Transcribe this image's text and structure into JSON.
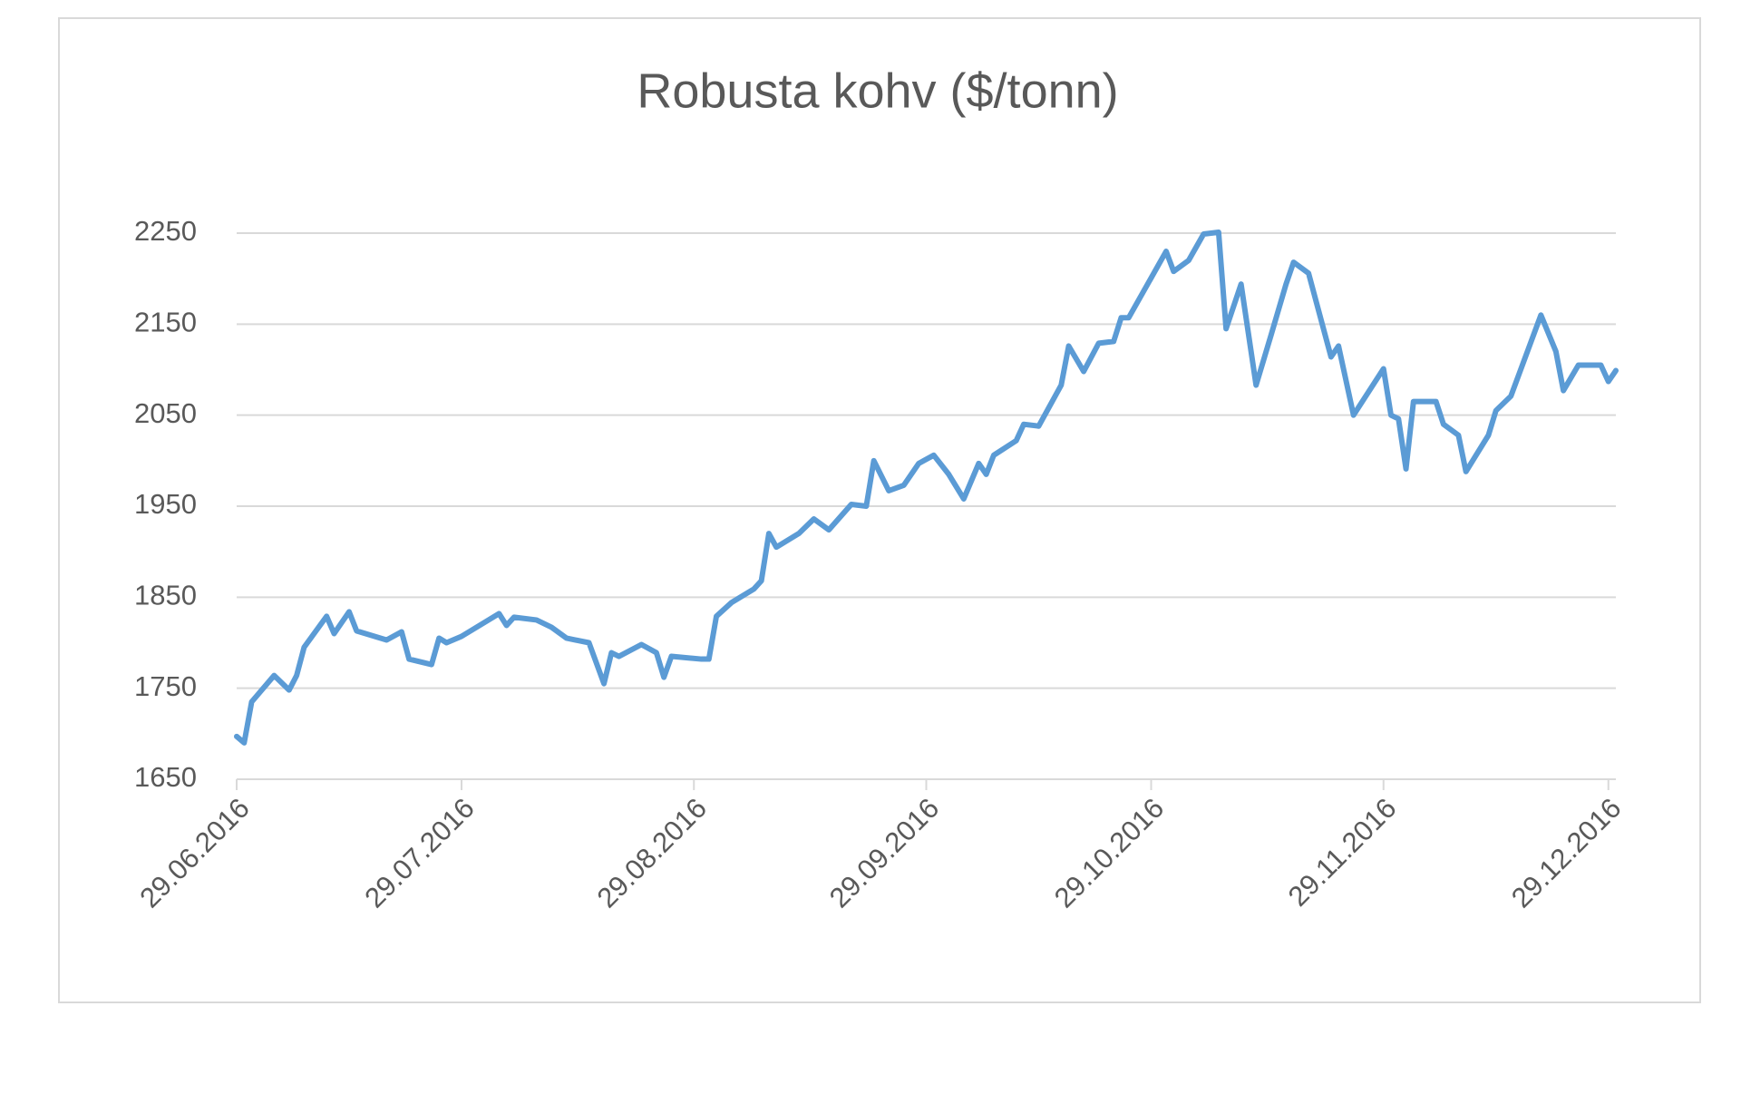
{
  "chart_data": {
    "type": "line",
    "title": "Robusta kohv ($/tonn)",
    "x": [
      "29.06.2016",
      "30.06.2016",
      "01.07.2016",
      "04.07.2016",
      "06.07.2016",
      "07.07.2016",
      "08.07.2016",
      "11.07.2016",
      "12.07.2016",
      "14.07.2016",
      "15.07.2016",
      "19.07.2016",
      "21.07.2016",
      "22.07.2016",
      "25.07.2016",
      "26.07.2016",
      "27.07.2016",
      "29.07.2016",
      "03.08.2016",
      "04.08.2016",
      "05.08.2016",
      "08.08.2016",
      "10.08.2016",
      "12.08.2016",
      "15.08.2016",
      "17.08.2016",
      "18.08.2016",
      "19.08.2016",
      "22.08.2016",
      "24.08.2016",
      "25.08.2016",
      "26.08.2016",
      "30.08.2016",
      "31.08.2016",
      "01.09.2016",
      "03.09.2016",
      "06.09.2016",
      "07.09.2016",
      "08.09.2016",
      "09.09.2016",
      "12.09.2016",
      "14.09.2016",
      "16.09.2016",
      "19.09.2016",
      "21.09.2016",
      "22.09.2016",
      "24.09.2016",
      "26.09.2016",
      "28.09.2016",
      "30.09.2016",
      "02.10.2016",
      "04.10.2016",
      "06.10.2016",
      "07.10.2016",
      "08.10.2016",
      "11.10.2016",
      "12.10.2016",
      "14.10.2016",
      "17.10.2016",
      "18.10.2016",
      "20.10.2016",
      "22.10.2016",
      "24.10.2016",
      "25.10.2016",
      "26.10.2016",
      "31.10.2016",
      "01.11.2016",
      "03.11.2016",
      "05.11.2016",
      "07.11.2016",
      "08.11.2016",
      "10.11.2016",
      "12.11.2016",
      "14.11.2016",
      "16.11.2016",
      "17.11.2016",
      "19.11.2016",
      "22.11.2016",
      "23.11.2016",
      "25.11.2016",
      "29.11.2016",
      "30.11.2016",
      "01.12.2016",
      "02.12.2016",
      "03.12.2016",
      "06.12.2016",
      "07.12.2016",
      "09.12.2016",
      "10.12.2016",
      "13.12.2016",
      "14.12.2016",
      "16.12.2016",
      "20.12.2016",
      "22.12.2016",
      "23.12.2016",
      "25.12.2016",
      "28.12.2016",
      "29.12.2016",
      "30.12.2016"
    ],
    "series": [
      {
        "name": "Robusta kohv",
        "color": "#5b9bd5",
        "values": [
          1697,
          1690,
          1735,
          1764,
          1748,
          1764,
          1795,
          1829,
          1810,
          1834,
          1813,
          1803,
          1812,
          1782,
          1776,
          1805,
          1800,
          1807,
          1832,
          1819,
          1828,
          1825,
          1817,
          1805,
          1800,
          1755,
          1789,
          1785,
          1798,
          1789,
          1762,
          1785,
          1782,
          1782,
          1829,
          1844,
          1859,
          1868,
          1920,
          1905,
          1920,
          1936,
          1924,
          1952,
          1950,
          2000,
          1967,
          1973,
          1997,
          2006,
          1985,
          1958,
          1997,
          1985,
          2006,
          2022,
          2040,
          2038,
          2083,
          2126,
          2098,
          2129,
          2131,
          2157,
          2157,
          2230,
          2208,
          2220,
          2249,
          2251,
          2145,
          2194,
          2083,
          2138,
          2194,
          2218,
          2206,
          2114,
          2126,
          2050,
          2101,
          2050,
          2046,
          1991,
          2065,
          2065,
          2040,
          2028,
          1988,
          2028,
          2055,
          2071,
          2160,
          2120,
          2077,
          2105,
          2105,
          2087,
          2099
        ]
      }
    ],
    "xlim": [
      "29.06.2016",
      "30.12.2016"
    ],
    "xticks": [
      "29.06.2016",
      "29.07.2016",
      "29.08.2016",
      "29.09.2016",
      "29.10.2016",
      "29.11.2016",
      "29.12.2016"
    ],
    "ylim": [
      1650,
      2250
    ],
    "yticks": [
      1650,
      1750,
      1850,
      1950,
      2050,
      2150,
      2250
    ],
    "grid": true
  }
}
